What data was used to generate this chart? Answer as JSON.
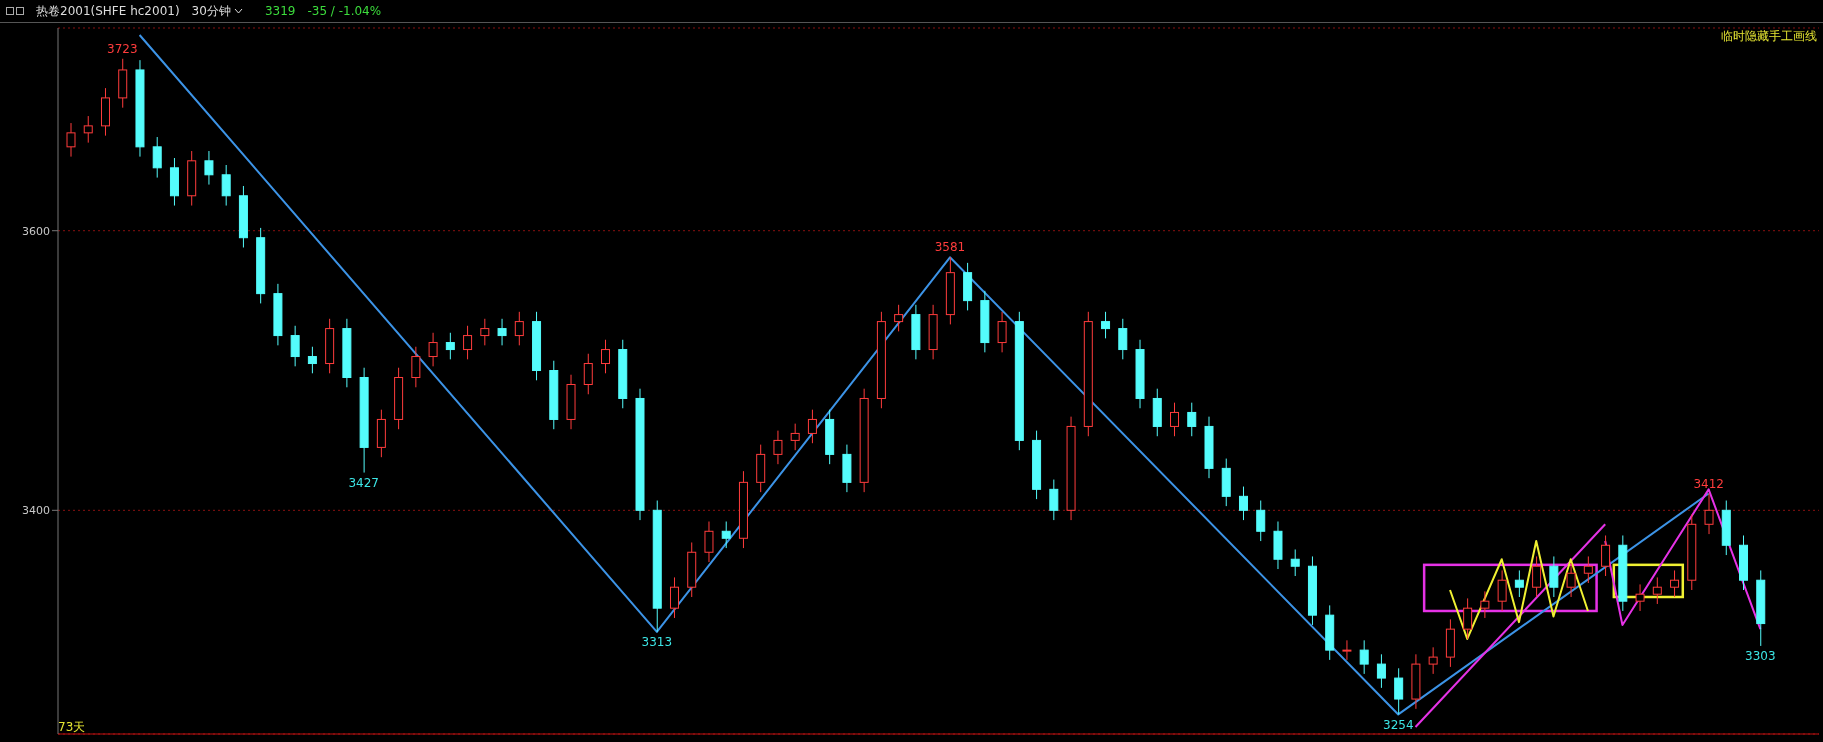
{
  "chart_data": {
    "type": "candlestick",
    "title": "热卷2001(SHFE hc2001)",
    "subtitle": "30分钟",
    "annotations": [
      "3319",
      "-35 / -1.04%",
      "73天",
      "临时隐藏手工画线",
      {
        "text": "3723",
        "y": 3723
      },
      {
        "text": "3427",
        "y": 3427
      },
      {
        "text": "3313",
        "y": 3313
      },
      {
        "text": "3581",
        "y": 3581
      },
      {
        "text": "3254",
        "y": 3254
      },
      {
        "text": "3412",
        "y": 3412
      },
      {
        "text": "3303",
        "y": 3303
      }
    ],
    "categories": [
      null,
      null,
      null,
      null,
      null,
      null,
      null,
      null,
      null,
      null,
      null,
      null,
      null,
      null,
      null,
      null,
      null,
      null,
      null,
      null,
      null,
      null,
      null,
      null,
      null,
      null,
      null,
      null,
      null,
      null,
      null,
      null,
      null,
      null,
      null,
      null,
      null,
      null,
      null,
      null,
      null,
      null,
      null,
      null,
      null,
      null,
      null,
      null,
      null,
      null,
      null,
      null,
      null,
      null,
      null,
      null,
      null,
      null,
      null,
      null,
      null,
      null,
      null,
      null,
      null,
      null,
      null,
      null,
      null,
      null,
      null,
      null,
      null,
      null,
      null,
      null,
      null,
      null,
      null,
      null,
      null,
      null,
      null,
      null,
      null,
      null,
      null,
      null,
      null,
      null,
      null,
      null,
      null,
      null,
      null,
      null,
      null,
      null,
      null
    ],
    "ohlc": [
      [
        3660,
        3677,
        3653,
        3670
      ],
      [
        3670,
        3682,
        3663,
        3675
      ],
      [
        3675,
        3702,
        3668,
        3695
      ],
      [
        3695,
        3723,
        3688,
        3715
      ],
      [
        3715,
        3722,
        3653,
        3660
      ],
      [
        3660,
        3667,
        3638,
        3645
      ],
      [
        3645,
        3652,
        3618,
        3625
      ],
      [
        3625,
        3657,
        3618,
        3650
      ],
      [
        3650,
        3657,
        3633,
        3640
      ],
      [
        3640,
        3647,
        3618,
        3625
      ],
      [
        3625,
        3632,
        3588,
        3595
      ],
      [
        3595,
        3602,
        3548,
        3555
      ],
      [
        3555,
        3562,
        3518,
        3525
      ],
      [
        3525,
        3532,
        3503,
        3510
      ],
      [
        3510,
        3517,
        3498,
        3505
      ],
      [
        3505,
        3537,
        3498,
        3530
      ],
      [
        3530,
        3537,
        3488,
        3495
      ],
      [
        3495,
        3502,
        3427,
        3445
      ],
      [
        3445,
        3472,
        3438,
        3465
      ],
      [
        3465,
        3502,
        3458,
        3495
      ],
      [
        3495,
        3517,
        3488,
        3510
      ],
      [
        3510,
        3527,
        3503,
        3520
      ],
      [
        3520,
        3527,
        3508,
        3515
      ],
      [
        3515,
        3532,
        3508,
        3525
      ],
      [
        3525,
        3537,
        3518,
        3530
      ],
      [
        3530,
        3537,
        3518,
        3525
      ],
      [
        3525,
        3542,
        3518,
        3535
      ],
      [
        3535,
        3542,
        3493,
        3500
      ],
      [
        3500,
        3507,
        3458,
        3465
      ],
      [
        3465,
        3497,
        3458,
        3490
      ],
      [
        3490,
        3512,
        3483,
        3505
      ],
      [
        3505,
        3522,
        3498,
        3515
      ],
      [
        3515,
        3522,
        3473,
        3480
      ],
      [
        3480,
        3487,
        3393,
        3400
      ],
      [
        3400,
        3407,
        3313,
        3330
      ],
      [
        3330,
        3352,
        3323,
        3345
      ],
      [
        3345,
        3377,
        3338,
        3370
      ],
      [
        3370,
        3392,
        3363,
        3385
      ],
      [
        3385,
        3392,
        3373,
        3380
      ],
      [
        3380,
        3428,
        3373,
        3420
      ],
      [
        3420,
        3447,
        3413,
        3440
      ],
      [
        3440,
        3457,
        3433,
        3450
      ],
      [
        3450,
        3462,
        3443,
        3455
      ],
      [
        3455,
        3472,
        3448,
        3465
      ],
      [
        3465,
        3472,
        3433,
        3440
      ],
      [
        3440,
        3447,
        3413,
        3420
      ],
      [
        3420,
        3487,
        3413,
        3480
      ],
      [
        3480,
        3542,
        3473,
        3535
      ],
      [
        3535,
        3547,
        3528,
        3540
      ],
      [
        3540,
        3547,
        3508,
        3515
      ],
      [
        3515,
        3547,
        3508,
        3540
      ],
      [
        3540,
        3581,
        3533,
        3570
      ],
      [
        3570,
        3577,
        3543,
        3550
      ],
      [
        3550,
        3557,
        3513,
        3520
      ],
      [
        3520,
        3542,
        3513,
        3535
      ],
      [
        3535,
        3542,
        3443,
        3450
      ],
      [
        3450,
        3457,
        3408,
        3415
      ],
      [
        3415,
        3422,
        3393,
        3400
      ],
      [
        3400,
        3467,
        3393,
        3460
      ],
      [
        3460,
        3542,
        3453,
        3535
      ],
      [
        3535,
        3542,
        3523,
        3530
      ],
      [
        3530,
        3537,
        3508,
        3515
      ],
      [
        3515,
        3522,
        3473,
        3480
      ],
      [
        3480,
        3487,
        3453,
        3460
      ],
      [
        3460,
        3477,
        3453,
        3470
      ],
      [
        3470,
        3477,
        3453,
        3460
      ],
      [
        3460,
        3467,
        3423,
        3430
      ],
      [
        3430,
        3437,
        3403,
        3410
      ],
      [
        3410,
        3417,
        3393,
        3400
      ],
      [
        3400,
        3407,
        3378,
        3385
      ],
      [
        3385,
        3392,
        3358,
        3365
      ],
      [
        3365,
        3372,
        3353,
        3360
      ],
      [
        3360,
        3367,
        3318,
        3325
      ],
      [
        3325,
        3332,
        3293,
        3300
      ],
      [
        3300,
        3307,
        3293,
        3300
      ],
      [
        3300,
        3307,
        3283,
        3290
      ],
      [
        3290,
        3297,
        3273,
        3280
      ],
      [
        3280,
        3287,
        3254,
        3265
      ],
      [
        3265,
        3297,
        3258,
        3290
      ],
      [
        3290,
        3302,
        3283,
        3295
      ],
      [
        3295,
        3322,
        3288,
        3315
      ],
      [
        3315,
        3337,
        3308,
        3330
      ],
      [
        3330,
        3342,
        3323,
        3335
      ],
      [
        3335,
        3357,
        3328,
        3350
      ],
      [
        3350,
        3357,
        3338,
        3345
      ],
      [
        3345,
        3367,
        3338,
        3360
      ],
      [
        3360,
        3367,
        3338,
        3345
      ],
      [
        3345,
        3362,
        3338,
        3355
      ],
      [
        3355,
        3367,
        3348,
        3360
      ],
      [
        3360,
        3382,
        3353,
        3375
      ],
      [
        3375,
        3382,
        3328,
        3335
      ],
      [
        3335,
        3347,
        3328,
        3340
      ],
      [
        3340,
        3352,
        3333,
        3345
      ],
      [
        3345,
        3357,
        3338,
        3350
      ],
      [
        3350,
        3397,
        3343,
        3390
      ],
      [
        3390,
        3412,
        3383,
        3400
      ],
      [
        3400,
        3407,
        3368,
        3375
      ],
      [
        3375,
        3382,
        3343,
        3350
      ],
      [
        3350,
        3357,
        3303,
        3319
      ]
    ],
    "colors": [
      "#ff3c3c",
      "#ff3c3c",
      "#ff3c3c",
      "#ff3c3c",
      "#54fcfc",
      "#54fcfc",
      "#54fcfc",
      "#ff3c3c",
      "#54fcfc",
      "#54fcfc",
      "#54fcfc",
      "#54fcfc",
      "#54fcfc",
      "#54fcfc",
      "#54fcfc",
      "#ff3c3c",
      "#54fcfc",
      "#54fcfc",
      "#ff3c3c",
      "#ff3c3c",
      "#ff3c3c",
      "#ff3c3c",
      "#54fcfc",
      "#ff3c3c",
      "#ff3c3c",
      "#54fcfc",
      "#ff3c3c",
      "#54fcfc",
      "#54fcfc",
      "#ff3c3c",
      "#ff3c3c",
      "#ff3c3c",
      "#54fcfc",
      "#54fcfc",
      "#54fcfc",
      "#ff3c3c",
      "#ff3c3c",
      "#ff3c3c",
      "#54fcfc",
      "#ff3c3c",
      "#ff3c3c",
      "#ff3c3c",
      "#ff3c3c",
      "#ff3c3c",
      "#54fcfc",
      "#54fcfc",
      "#ff3c3c",
      "#ff3c3c",
      "#ff3c3c",
      "#54fcfc",
      "#ff3c3c",
      "#ff3c3c",
      "#54fcfc",
      "#54fcfc",
      "#ff3c3c",
      "#54fcfc",
      "#54fcfc",
      "#54fcfc",
      "#ff3c3c",
      "#ff3c3c",
      "#54fcfc",
      "#54fcfc",
      "#54fcfc",
      "#54fcfc",
      "#ff3c3c",
      "#54fcfc",
      "#54fcfc",
      "#54fcfc",
      "#54fcfc",
      "#54fcfc",
      "#54fcfc",
      "#54fcfc",
      "#54fcfc",
      "#54fcfc",
      "#ff3c3c",
      "#54fcfc",
      "#54fcfc",
      "#54fcfc",
      "#ff3c3c",
      "#ff3c3c",
      "#ff3c3c",
      "#ff3c3c",
      "#ff3c3c",
      "#ff3c3c",
      "#54fcfc",
      "#ff3c3c",
      "#54fcfc",
      "#ff3c3c",
      "#ff3c3c",
      "#ff3c3c",
      "#54fcfc",
      "#ff3c3c",
      "#ff3c3c",
      "#ff3c3c",
      "#ff3c3c",
      "#ff3c3c",
      "#54fcfc",
      "#54fcfc",
      "#54fcfc"
    ],
    "series": [
      {
        "type": "line",
        "color": "#3c93e6",
        "values": [
          null,
          null,
          null,
          null,
          3740,
          null,
          null,
          null,
          null,
          null,
          null,
          null,
          null,
          null,
          null,
          null,
          null,
          null,
          null,
          null,
          null,
          null,
          null,
          null,
          null,
          null,
          null,
          null,
          null,
          null,
          null,
          null,
          null,
          null,
          3313,
          null,
          null,
          null,
          null,
          null,
          null,
          null,
          null,
          null,
          null,
          null,
          null,
          null,
          null,
          null,
          null,
          3581,
          null,
          null,
          null,
          null,
          null,
          null,
          null,
          null,
          null,
          null,
          null,
          null,
          null,
          null,
          null,
          null,
          null,
          null,
          null,
          null,
          null,
          null,
          null,
          null,
          null,
          3254,
          null,
          null,
          null,
          null,
          null,
          null,
          null,
          null,
          null,
          null,
          null,
          null,
          null,
          null,
          null,
          null,
          null,
          3412,
          null,
          null,
          null
        ]
      },
      {
        "type": "line",
        "color": "#e632e6",
        "values": [
          null,
          null,
          null,
          null,
          null,
          null,
          null,
          null,
          null,
          null,
          null,
          null,
          null,
          null,
          null,
          null,
          null,
          null,
          null,
          null,
          null,
          null,
          null,
          null,
          null,
          null,
          null,
          null,
          null,
          null,
          null,
          null,
          null,
          null,
          null,
          null,
          null,
          null,
          null,
          null,
          null,
          null,
          null,
          null,
          null,
          null,
          null,
          null,
          null,
          null,
          null,
          null,
          null,
          null,
          null,
          null,
          null,
          null,
          null,
          null,
          null,
          null,
          null,
          null,
          null,
          null,
          null,
          null,
          null,
          null,
          null,
          null,
          null,
          null,
          null,
          null,
          null,
          null,
          3245,
          null,
          null,
          null,
          null,
          null,
          null,
          null,
          null,
          null,
          null,
          3390,
          null,
          null,
          null,
          null,
          null,
          null,
          null,
          null,
          null
        ]
      },
      {
        "type": "line",
        "color": "#e632e6",
        "values": [
          null,
          null,
          null,
          null,
          null,
          null,
          null,
          null,
          null,
          null,
          null,
          null,
          null,
          null,
          null,
          null,
          null,
          null,
          null,
          null,
          null,
          null,
          null,
          null,
          null,
          null,
          null,
          null,
          null,
          null,
          null,
          null,
          null,
          null,
          null,
          null,
          null,
          null,
          null,
          null,
          null,
          null,
          null,
          null,
          null,
          null,
          null,
          null,
          null,
          null,
          null,
          null,
          null,
          null,
          null,
          null,
          null,
          null,
          null,
          null,
          null,
          null,
          null,
          null,
          null,
          null,
          null,
          null,
          null,
          null,
          null,
          null,
          null,
          null,
          null,
          null,
          null,
          null,
          null,
          null,
          null,
          null,
          null,
          null,
          null,
          null,
          null,
          null,
          null,
          3378,
          3318,
          null,
          null,
          null,
          null,
          3415,
          null,
          null,
          3315
        ]
      },
      {
        "type": "line",
        "color": "#f0f032",
        "values": [
          null,
          null,
          null,
          null,
          null,
          null,
          null,
          null,
          null,
          null,
          null,
          null,
          null,
          null,
          null,
          null,
          null,
          null,
          null,
          null,
          null,
          null,
          null,
          null,
          null,
          null,
          null,
          null,
          null,
          null,
          null,
          null,
          null,
          null,
          null,
          null,
          null,
          null,
          null,
          null,
          null,
          null,
          null,
          null,
          null,
          null,
          null,
          null,
          null,
          null,
          null,
          null,
          null,
          null,
          null,
          null,
          null,
          null,
          null,
          null,
          null,
          null,
          null,
          null,
          null,
          null,
          null,
          null,
          null,
          null,
          null,
          null,
          null,
          null,
          null,
          null,
          null,
          null,
          null,
          null,
          3343,
          3308,
          null,
          3365,
          3320,
          3378,
          3324,
          3365,
          3328,
          null,
          null,
          null,
          null,
          null,
          null,
          null,
          null,
          null,
          null
        ]
      }
    ],
    "ylim": [
      3240,
      3745
    ],
    "yticks": [
      3600,
      3400
    ],
    "grid": "y",
    "tick_labels": "y"
  }
}
